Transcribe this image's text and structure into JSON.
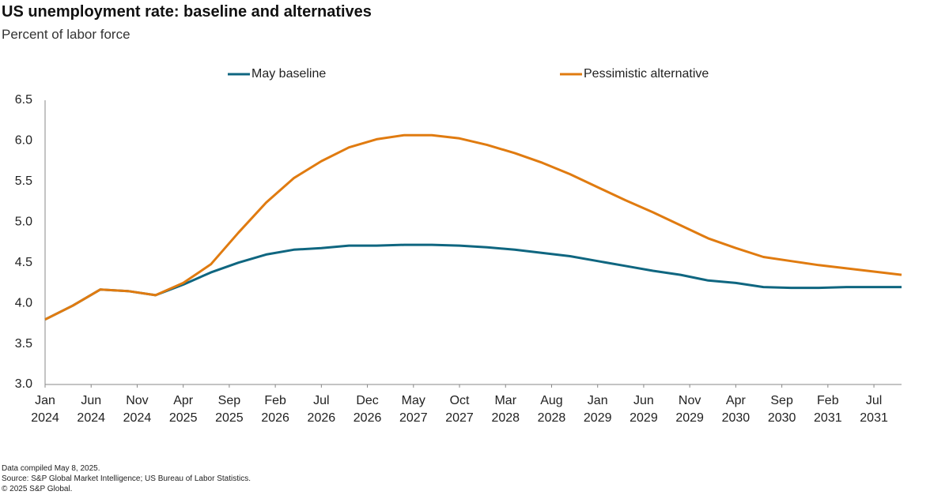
{
  "chart_data": {
    "type": "line",
    "title": "US unemployment rate: baseline and alternatives",
    "subtitle": "Percent of labor force",
    "x": [
      "2024-01",
      "2024-04",
      "2024-07",
      "2024-10",
      "2025-01",
      "2025-04",
      "2025-07",
      "2025-10",
      "2026-01",
      "2026-04",
      "2026-07",
      "2026-10",
      "2027-01",
      "2027-04",
      "2027-07",
      "2027-10",
      "2028-01",
      "2028-04",
      "2028-07",
      "2028-10",
      "2029-01",
      "2029-04",
      "2029-07",
      "2029-10",
      "2030-01",
      "2030-04",
      "2030-07",
      "2030-10",
      "2031-01",
      "2031-04",
      "2031-07",
      "2031-10"
    ],
    "series": [
      {
        "name": "May baseline",
        "color": "#0f6680",
        "values": [
          3.8,
          3.97,
          4.17,
          4.15,
          4.1,
          4.23,
          4.38,
          4.5,
          4.6,
          4.66,
          4.68,
          4.71,
          4.71,
          4.72,
          4.72,
          4.71,
          4.69,
          4.66,
          4.62,
          4.58,
          4.52,
          4.46,
          4.4,
          4.35,
          4.28,
          4.25,
          4.2,
          4.19,
          4.19,
          4.2,
          4.2,
          4.2
        ]
      },
      {
        "name": "Pessimistic alternative",
        "color": "#e07b10",
        "values": [
          3.8,
          3.97,
          4.17,
          4.15,
          4.1,
          4.25,
          4.48,
          4.87,
          5.24,
          5.54,
          5.75,
          5.92,
          6.02,
          6.07,
          6.07,
          6.03,
          5.95,
          5.85,
          5.73,
          5.59,
          5.43,
          5.27,
          5.12,
          4.96,
          4.8,
          4.68,
          4.57,
          4.52,
          4.47,
          4.43,
          4.39,
          4.35
        ]
      }
    ],
    "xlim": [
      "2024-01",
      "2031-10"
    ],
    "xticks": [
      {
        "value": "2024-01",
        "label": "Jan 2024"
      },
      {
        "value": "2024-06",
        "label": "Jun 2024"
      },
      {
        "value": "2024-11",
        "label": "Nov 2024"
      },
      {
        "value": "2025-04",
        "label": "Apr 2025"
      },
      {
        "value": "2025-09",
        "label": "Sep 2025"
      },
      {
        "value": "2026-02",
        "label": "Feb 2026"
      },
      {
        "value": "2026-07",
        "label": "Jul 2026"
      },
      {
        "value": "2026-12",
        "label": "Dec 2026"
      },
      {
        "value": "2027-05",
        "label": "May 2027"
      },
      {
        "value": "2027-10",
        "label": "Oct 2027"
      },
      {
        "value": "2028-03",
        "label": "Mar 2028"
      },
      {
        "value": "2028-08",
        "label": "Aug 2028"
      },
      {
        "value": "2029-01",
        "label": "Jan 2029"
      },
      {
        "value": "2029-06",
        "label": "Jun 2029"
      },
      {
        "value": "2029-11",
        "label": "Nov 2029"
      },
      {
        "value": "2030-04",
        "label": "Apr 2030"
      },
      {
        "value": "2030-09",
        "label": "Sep 2030"
      },
      {
        "value": "2031-02",
        "label": "Feb 2031"
      },
      {
        "value": "2031-07",
        "label": "Jul 2031"
      }
    ],
    "ylim": [
      3,
      6.5
    ],
    "yticks": [
      {
        "value": 3,
        "label": "3.0"
      },
      3.5,
      {
        "value": 4,
        "label": "4.0"
      },
      4.5,
      {
        "value": 5,
        "label": "5.0"
      },
      5.5,
      {
        "value": 6,
        "label": "6.0"
      },
      6.5
    ],
    "grid": false,
    "legend": "top",
    "notes": [
      "Data compiled May 8, 2025.",
      "Source: S&P Global Market Intelligence; US Bureau of Labor Statistics.",
      "© 2025 S&P Global."
    ]
  }
}
